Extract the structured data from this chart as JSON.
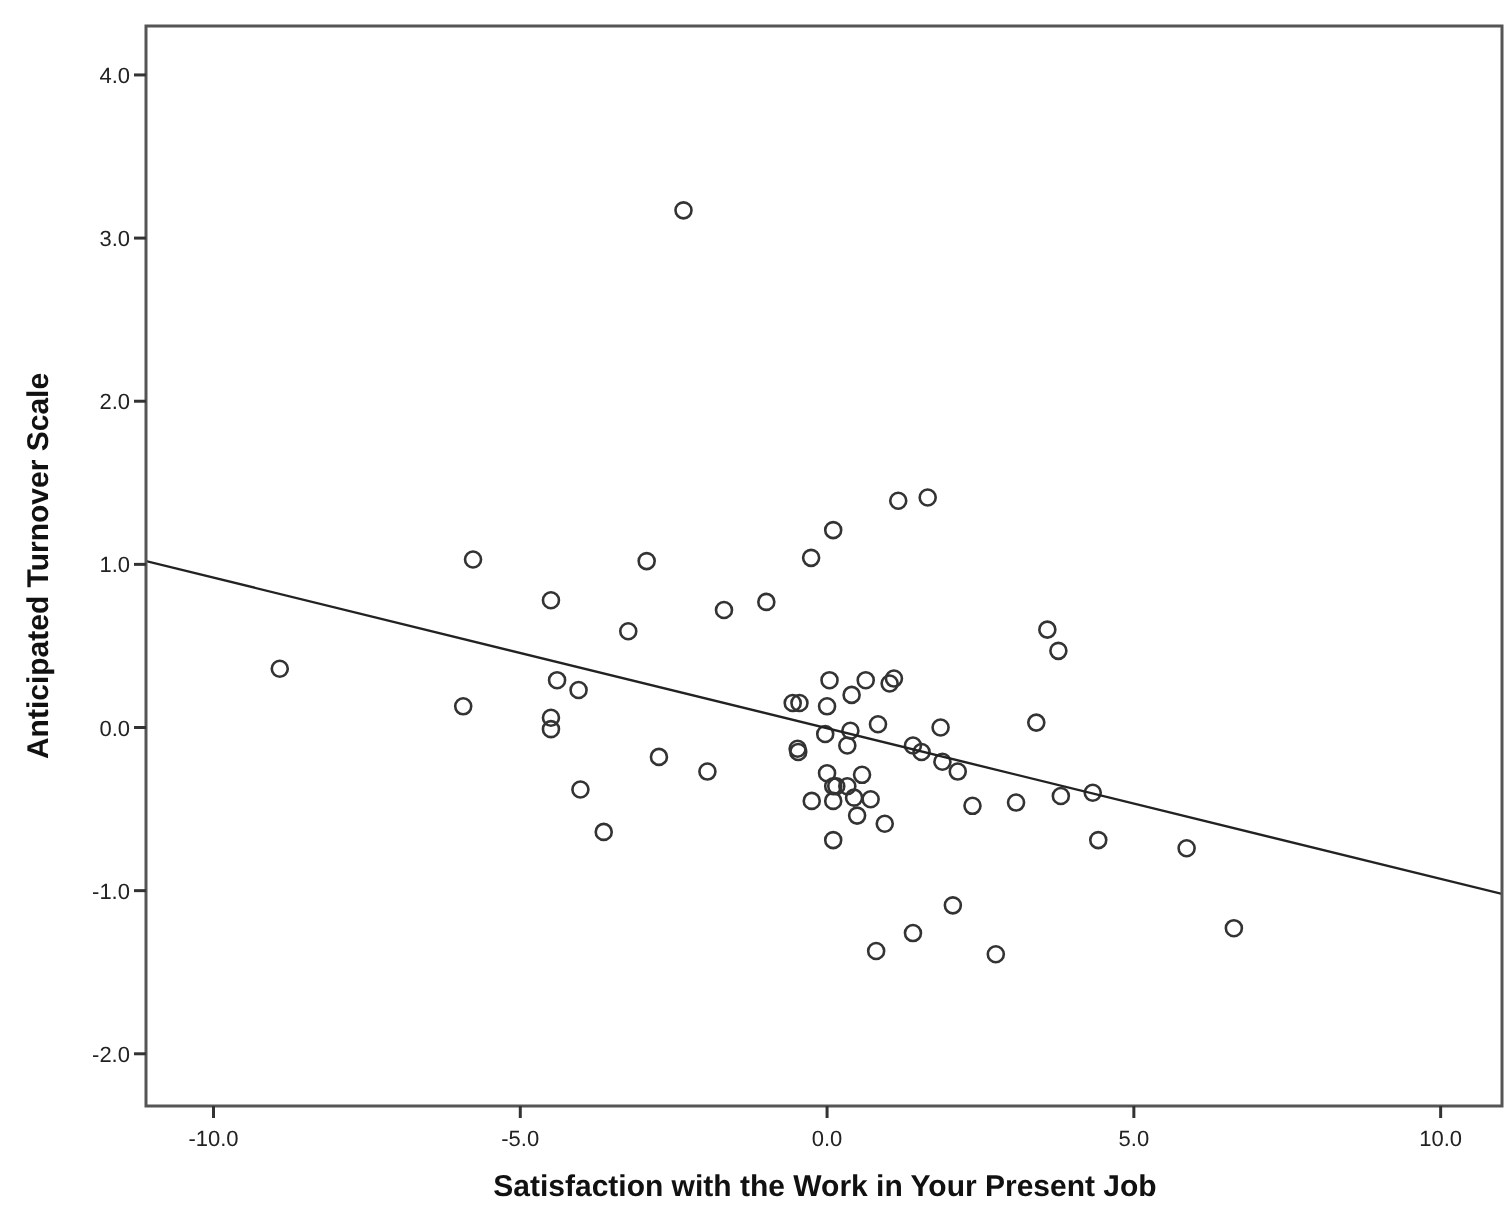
{
  "chart_data": {
    "type": "scatter",
    "xlabel": "Satisfaction with the Work in Your Present Job",
    "ylabel": "Anticipated Turnover Scale",
    "xlim": [
      -11.1,
      11.0
    ],
    "ylim": [
      -2.32,
      4.3
    ],
    "xticks": [
      {
        "value": -10,
        "label": "-10.0"
      },
      {
        "value": -5,
        "label": "-5.0"
      },
      {
        "value": 0,
        "label": "0.0"
      },
      {
        "value": 5,
        "label": "5.0"
      },
      {
        "value": 10,
        "label": "10.0"
      }
    ],
    "yticks": [
      {
        "value": -2,
        "label": "-2.0"
      },
      {
        "value": -1,
        "label": "-1.0"
      },
      {
        "value": 0,
        "label": "0.0"
      },
      {
        "value": 1,
        "label": "1.0"
      },
      {
        "value": 2,
        "label": "2.0"
      },
      {
        "value": 3,
        "label": "3.0"
      },
      {
        "value": 4,
        "label": "4.0"
      }
    ],
    "grid": false,
    "marker": "circle",
    "series": [
      {
        "color": "#333333",
        "x": [
          -8.92,
          -5.77,
          -5.93,
          -4.5,
          -4.5,
          -4.5,
          -4.4,
          -4.05,
          -4.02,
          -3.64,
          -3.24,
          -2.74,
          -2.94,
          -2.34,
          -1.95,
          -1.68,
          -0.99,
          -0.26,
          0.1,
          -0.56,
          -0.45,
          -0.48,
          -0.47,
          0.04,
          0.0,
          -0.03,
          0.0,
          -0.25,
          0.1,
          0.1,
          0.1,
          1.16,
          1.64,
          3.59,
          3.77,
          0.63,
          0.4,
          1.02,
          1.09,
          3.41,
          0.83,
          1.85,
          0.38,
          0.33,
          1.4,
          1.54,
          1.88,
          2.13,
          0.57,
          0.15,
          0.33,
          0.44,
          0.71,
          0.49,
          0.94,
          2.37,
          3.08,
          3.81,
          4.33,
          4.42,
          5.86,
          2.05,
          1.4,
          0.8,
          2.75,
          6.63
        ],
        "values": [
          0.36,
          1.03,
          0.13,
          0.78,
          0.06,
          -0.01,
          0.29,
          0.23,
          -0.38,
          -0.64,
          0.59,
          -0.18,
          1.02,
          3.17,
          -0.27,
          0.72,
          0.77,
          1.04,
          1.21,
          0.15,
          0.15,
          -0.13,
          -0.15,
          0.29,
          0.13,
          -0.04,
          -0.28,
          -0.45,
          -0.45,
          -0.69,
          -0.36,
          1.39,
          1.41,
          0.6,
          0.47,
          0.29,
          0.2,
          0.27,
          0.3,
          0.03,
          0.02,
          0.0,
          -0.02,
          -0.11,
          -0.11,
          -0.15,
          -0.21,
          -0.27,
          -0.29,
          -0.36,
          -0.36,
          -0.43,
          -0.44,
          -0.54,
          -0.59,
          -0.48,
          -0.46,
          -0.42,
          -0.4,
          -0.69,
          -0.74,
          -1.09,
          -1.26,
          -1.37,
          -1.39,
          -1.23
        ]
      },
      {
        "type": "line",
        "color": "#222222",
        "x": [
          -11.1,
          11.0
        ],
        "values": [
          1.02,
          -1.02
        ],
        "marker": "none"
      }
    ]
  }
}
